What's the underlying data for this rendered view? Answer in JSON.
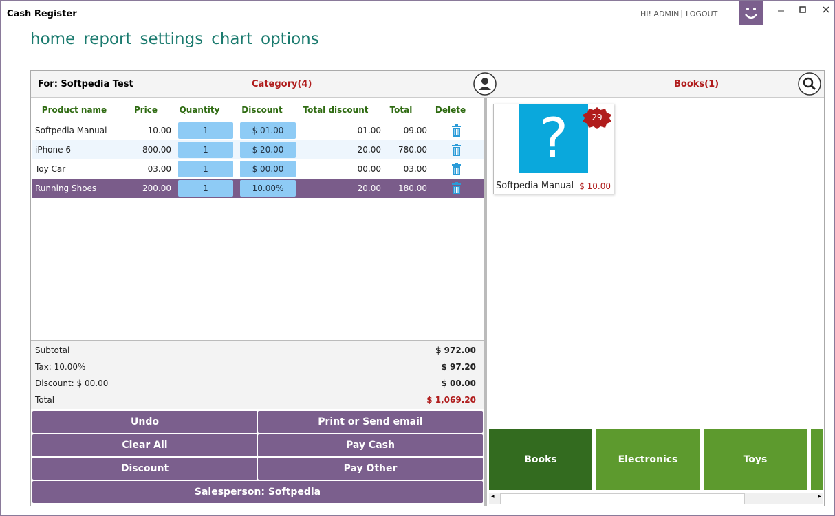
{
  "window": {
    "title": "Cash Register",
    "user": "HI! ADMIN",
    "logout": "LOGOUT"
  },
  "nav": [
    "home",
    "report",
    "settings",
    "chart",
    "options"
  ],
  "order": {
    "customer": "For: Softpedia Test",
    "category": "Category(4)",
    "columns": [
      "Product name",
      "Price",
      "Quantity",
      "Discount",
      "Total discount",
      "Total",
      "Delete"
    ],
    "rows": [
      [
        "Softpedia Manual",
        "10.00",
        "1",
        "$ 01.00",
        "01.00",
        "09.00"
      ],
      [
        "iPhone 6",
        "800.00",
        "1",
        "$ 20.00",
        "20.00",
        "780.00"
      ],
      [
        "Toy Car",
        "03.00",
        "1",
        "$ 00.00",
        "00.00",
        "03.00"
      ],
      [
        "Running Shoes",
        "200.00",
        "1",
        "10.00%",
        "20.00",
        "180.00"
      ]
    ]
  },
  "summary": [
    {
      "label": "Subtotal",
      "value": "$ 972.00"
    },
    {
      "label": "Tax: 10.00%",
      "value": "$ 97.20"
    },
    {
      "label": "Discount: $ 00.00",
      "value": "$ 00.00"
    },
    {
      "label": "Total",
      "value": "$ 1,069.20"
    }
  ],
  "buttons": [
    "Undo",
    "Print or Send email",
    "Clear All",
    "Pay Cash",
    "Discount",
    "Pay Other",
    "Salesperson: Softpedia"
  ],
  "products": {
    "header": "Books(1)",
    "items": [
      {
        "name": "Softpedia Manual",
        "price": "$ 10.00",
        "stock": "29"
      }
    ]
  },
  "categories": [
    "Books",
    "Electronics",
    "Toys"
  ]
}
